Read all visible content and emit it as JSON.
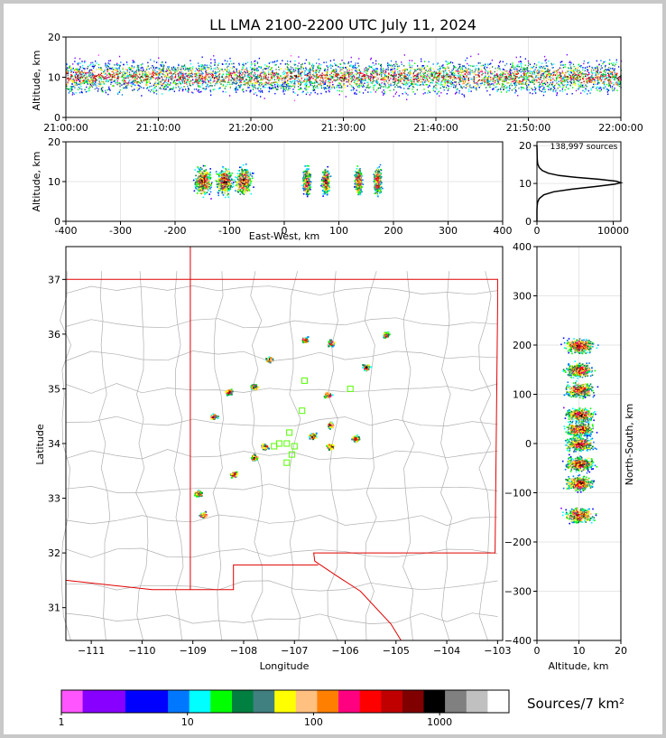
{
  "title": "LL LMA 2100-2200 UTC July 11, 2024",
  "colors": {
    "palette": [
      "#ff55ff",
      "#8800ff",
      "#8800ff",
      "#0000ff",
      "#0000ff",
      "#0077ff",
      "#00ffff",
      "#00ff00",
      "#008040",
      "#408080",
      "#ffff00",
      "#ffc080",
      "#ff8000",
      "#ff0080",
      "#ff0000",
      "#c00000",
      "#800000",
      "#000000",
      "#808080",
      "#c0c0c0",
      "#ffffff"
    ],
    "state_boundary": "#e00000",
    "county_boundary": "#b0b0b0",
    "station_marker": "#55ff00"
  },
  "chart_data": [
    {
      "id": "time-height",
      "type": "scatter",
      "x_tick_labels": [
        "21:00:00",
        "21:10:00",
        "21:20:00",
        "21:30:00",
        "21:40:00",
        "21:50:00",
        "22:00:00"
      ],
      "ylabel": "Altitude, km",
      "ylim": [
        0,
        20
      ],
      "y_ticks": [
        0,
        10,
        20
      ],
      "density_profile": {
        "core_altitude_km": 10,
        "spread_km": 4
      }
    },
    {
      "id": "ew-height",
      "type": "scatter",
      "xlabel": "East-West, km",
      "ylabel": "Altitude, km",
      "xlim": [
        -400,
        400
      ],
      "x_ticks": [
        -400,
        -300,
        -200,
        -100,
        0,
        100,
        200,
        300,
        400
      ],
      "ylim": [
        0,
        20
      ],
      "y_ticks": [
        0,
        10,
        20
      ],
      "clusters_ew_km": [
        -150,
        -110,
        -75,
        40,
        75,
        135,
        170
      ]
    },
    {
      "id": "altitude-histogram",
      "type": "line",
      "annotation": "138,997 sources",
      "xlim": [
        0,
        11000
      ],
      "x_ticks": [
        0,
        10000
      ],
      "ylim": [
        0,
        21
      ],
      "y_ticks": [
        0,
        10,
        20
      ],
      "x": [
        0,
        5,
        20,
        80,
        300,
        900,
        2200,
        4600,
        7800,
        10200,
        11000,
        10400,
        8200,
        5200,
        2900,
        1500,
        700,
        300,
        100,
        30,
        0
      ],
      "y": [
        0,
        3,
        4,
        5,
        6,
        7,
        7.8,
        8.5,
        9.2,
        9.8,
        10.2,
        10.6,
        11.1,
        11.6,
        12.1,
        12.7,
        13.4,
        14.2,
        15.2,
        16.5,
        20
      ]
    },
    {
      "id": "plan-view-map",
      "type": "scatter",
      "xlabel": "Longitude",
      "ylabel": "Latitude",
      "xlim": [
        -111.5,
        -102.9
      ],
      "x_ticks": [
        -111,
        -110,
        -109,
        -108,
        -107,
        -106,
        -105,
        -104,
        -103
      ],
      "ylim": [
        30.4,
        37.6
      ],
      "y_ticks": [
        31,
        32,
        33,
        34,
        35,
        36,
        37
      ],
      "clusters": [
        {
          "lon": -108.8,
          "lat": 32.7
        },
        {
          "lon": -108.9,
          "lat": 33.1
        },
        {
          "lon": -108.2,
          "lat": 33.45
        },
        {
          "lon": -107.8,
          "lat": 33.75
        },
        {
          "lon": -107.6,
          "lat": 33.95
        },
        {
          "lon": -107.8,
          "lat": 35.05
        },
        {
          "lon": -107.5,
          "lat": 35.55
        },
        {
          "lon": -106.8,
          "lat": 35.9
        },
        {
          "lon": -106.3,
          "lat": 35.85
        },
        {
          "lon": -106.35,
          "lat": 34.9
        },
        {
          "lon": -106.3,
          "lat": 34.35
        },
        {
          "lon": -106.65,
          "lat": 34.15
        },
        {
          "lon": -105.8,
          "lat": 34.1
        },
        {
          "lon": -105.6,
          "lat": 35.4
        },
        {
          "lon": -105.2,
          "lat": 36.0
        },
        {
          "lon": -108.3,
          "lat": 34.95
        },
        {
          "lon": -108.6,
          "lat": 34.5
        },
        {
          "lon": -106.3,
          "lat": 33.95
        }
      ],
      "stations": [
        {
          "lon": -107.1,
          "lat": 34.2
        },
        {
          "lon": -107.3,
          "lat": 34.0
        },
        {
          "lon": -107.0,
          "lat": 33.95
        },
        {
          "lon": -107.05,
          "lat": 33.8
        },
        {
          "lon": -107.15,
          "lat": 33.65
        },
        {
          "lon": -106.85,
          "lat": 34.6
        },
        {
          "lon": -106.8,
          "lat": 35.15
        },
        {
          "lon": -105.9,
          "lat": 35.0
        },
        {
          "lon": -107.4,
          "lat": 33.95
        },
        {
          "lon": -107.15,
          "lat": 34.0
        }
      ]
    },
    {
      "id": "height-ns",
      "type": "scatter",
      "xlabel": "Altitude, km",
      "ylabel": "North-South, km",
      "xlim": [
        0,
        20
      ],
      "x_ticks": [
        0,
        10,
        20
      ],
      "ylim": [
        -400,
        400
      ],
      "y_ticks": [
        -400,
        -300,
        -200,
        -100,
        0,
        100,
        200,
        300,
        400
      ],
      "clusters_ns_km": [
        200,
        150,
        110,
        60,
        30,
        0,
        -40,
        -80,
        -145
      ]
    }
  ],
  "colorbar": {
    "label": "Sources/7 km²",
    "tick_labels": [
      "1",
      "10",
      "100",
      "1000"
    ]
  }
}
